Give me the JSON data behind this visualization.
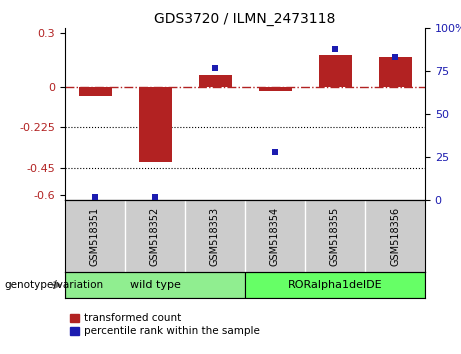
{
  "title": "GDS3720 / ILMN_2473118",
  "samples": [
    "GSM518351",
    "GSM518352",
    "GSM518353",
    "GSM518354",
    "GSM518355",
    "GSM518356"
  ],
  "red_bars": [
    -0.05,
    -0.42,
    0.07,
    -0.02,
    0.18,
    0.17
  ],
  "blue_dots": [
    2.0,
    2.0,
    77.0,
    28.0,
    88.0,
    83.0
  ],
  "ylim_left": [
    -0.63,
    0.33
  ],
  "ylim_right": [
    0,
    100
  ],
  "yticks_left": [
    0.3,
    0,
    -0.225,
    -0.45,
    -0.6
  ],
  "yticks_right": [
    100,
    75,
    50,
    25,
    0
  ],
  "ytick_left_labels": [
    "0.3",
    "0",
    "-0.225",
    "-0.45",
    "-0.6"
  ],
  "ytick_right_labels": [
    "100%",
    "75",
    "50",
    "25",
    "0"
  ],
  "hlines_dotted": [
    -0.225,
    -0.45
  ],
  "hline_dashdot": 0.0,
  "bar_color": "#B22222",
  "dot_color": "#1C1CB0",
  "bar_width": 0.55,
  "groups": [
    {
      "label": "wild type",
      "indices": [
        0,
        1,
        2
      ],
      "color": "#90EE90"
    },
    {
      "label": "RORalpha1delDE",
      "indices": [
        3,
        4,
        5
      ],
      "color": "#66FF66"
    }
  ],
  "genotype_label": "genotype/variation",
  "legend_red": "transformed count",
  "legend_blue": "percentile rank within the sample",
  "bg_plot": "#ffffff",
  "bg_sample": "#cccccc",
  "title_fontsize": 10,
  "tick_fontsize": 8,
  "label_fontsize": 8
}
